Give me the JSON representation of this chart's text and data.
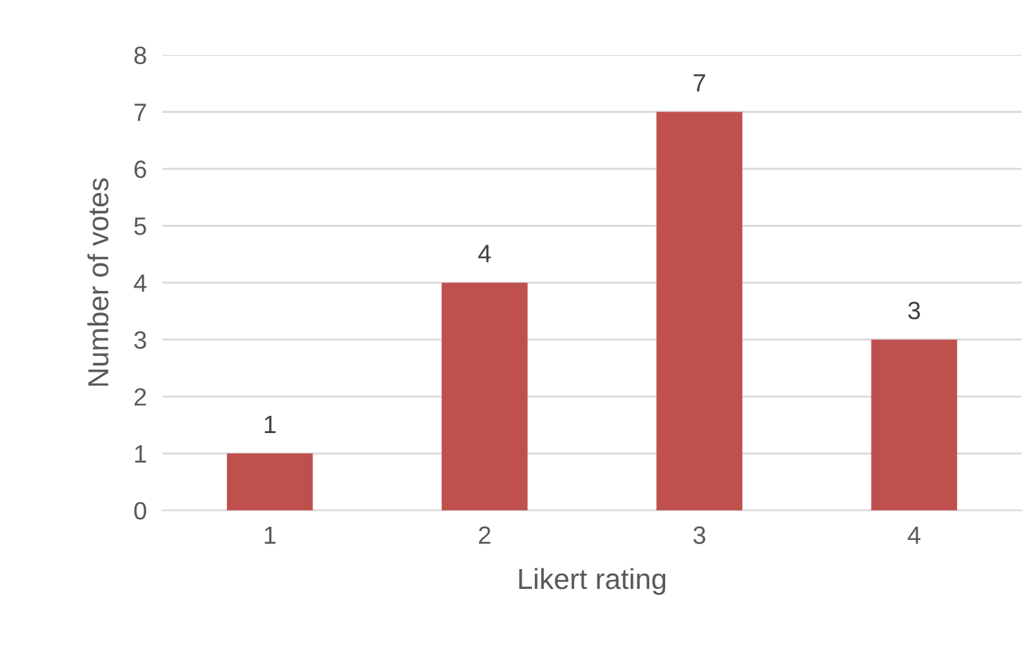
{
  "chart_data": {
    "type": "bar",
    "xlabel": "Likert rating",
    "ylabel": "Number of votes",
    "categories": [
      "1",
      "2",
      "3",
      "4"
    ],
    "values": [
      1,
      4,
      7,
      3
    ],
    "color": "#c0504d",
    "ylim": [
      0,
      8
    ],
    "yticks": [
      0,
      1,
      2,
      3,
      4,
      5,
      6,
      7,
      8
    ],
    "grid": "y",
    "data_labels": true,
    "legend": false
  }
}
